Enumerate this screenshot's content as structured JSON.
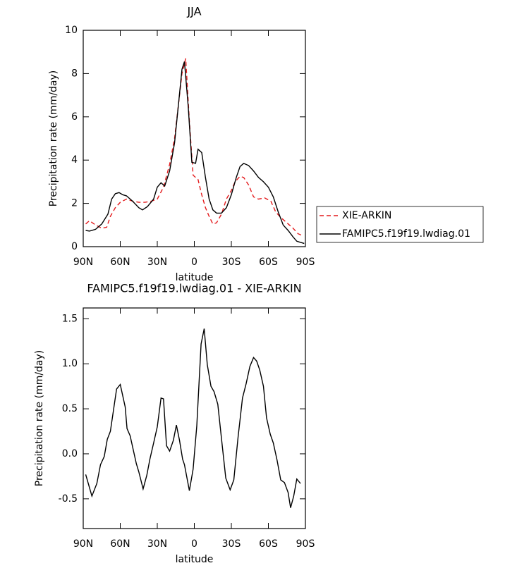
{
  "chart_data": [
    {
      "type": "line",
      "title": "JJA",
      "x_label": "latitude",
      "y_label": "Precipitation rate (mm/day)",
      "xlim": [
        90,
        -90
      ],
      "xticks": [
        {
          "value": 90,
          "label": "90N"
        },
        {
          "value": 60,
          "label": "60N"
        },
        {
          "value": 30,
          "label": "30N"
        },
        0,
        {
          "value": -30,
          "label": "30S"
        },
        {
          "value": -60,
          "label": "60S"
        },
        {
          "value": -90,
          "label": "90S"
        }
      ],
      "ylim": [
        0,
        10
      ],
      "yticks": [
        0,
        2,
        4,
        6,
        8,
        10
      ],
      "legend": "right",
      "series": [
        {
          "name": "XIE-ARKIN",
          "color": "#e41a1c",
          "line_style": "dashed",
          "x": [
            88,
            85,
            80,
            75,
            71,
            68,
            64,
            60,
            55,
            50,
            45,
            40,
            35,
            30,
            25,
            20,
            16,
            13,
            10,
            7,
            4,
            1,
            -3,
            -6,
            -9,
            -12,
            -15,
            -18,
            -22,
            -26,
            -30,
            -33,
            -37,
            -40,
            -44,
            -48,
            -52,
            -57,
            -62,
            -66,
            -70,
            -75,
            -80,
            -84,
            -88
          ],
          "values": [
            1.05,
            1.2,
            1.0,
            0.85,
            0.9,
            1.4,
            1.8,
            2.05,
            2.2,
            2.1,
            2.05,
            2.05,
            2.1,
            2.2,
            2.75,
            3.8,
            5.0,
            6.5,
            8.0,
            8.7,
            5.8,
            3.3,
            3.1,
            2.4,
            1.8,
            1.4,
            1.05,
            1.1,
            1.5,
            2.2,
            2.6,
            3.0,
            3.25,
            3.2,
            2.85,
            2.3,
            2.2,
            2.25,
            2.1,
            1.6,
            1.35,
            1.1,
            0.85,
            0.6,
            0.5
          ]
        },
        {
          "name": "FAMIPC5.f19f19.lwdiag.01",
          "color": "#000000",
          "line_style": "solid",
          "x": [
            88,
            85,
            80,
            75,
            70,
            67,
            64,
            61,
            58,
            55,
            50,
            45,
            42,
            38,
            33,
            30,
            27,
            24,
            20,
            16,
            13,
            10,
            8,
            5,
            2,
            -1,
            -3,
            -6,
            -9,
            -12,
            -15,
            -18,
            -22,
            -26,
            -30,
            -34,
            -37,
            -40,
            -44,
            -48,
            -52,
            -56,
            -60,
            -64,
            -68,
            -72,
            -76,
            -80,
            -83,
            -86,
            -89
          ],
          "values": [
            0.75,
            0.72,
            0.8,
            1.05,
            1.5,
            2.2,
            2.45,
            2.5,
            2.4,
            2.35,
            2.1,
            1.8,
            1.7,
            1.85,
            2.2,
            2.75,
            2.95,
            2.8,
            3.5,
            4.8,
            6.5,
            8.2,
            8.55,
            6.5,
            3.9,
            3.85,
            4.5,
            4.35,
            3.2,
            2.2,
            1.7,
            1.55,
            1.55,
            1.8,
            2.4,
            3.2,
            3.7,
            3.85,
            3.75,
            3.5,
            3.2,
            3.0,
            2.75,
            2.3,
            1.6,
            1.0,
            0.75,
            0.45,
            0.25,
            0.2,
            0.15
          ]
        }
      ]
    },
    {
      "type": "line",
      "title": "FAMIPC5.f19f19.lwdiag.01 - XIE-ARKIN",
      "x_label": "latitude",
      "y_label": "Precipitation rate (mm/day)",
      "xlim": [
        90,
        -90
      ],
      "xticks": [
        {
          "value": 90,
          "label": "90N"
        },
        {
          "value": 60,
          "label": "60N"
        },
        {
          "value": 30,
          "label": "30N"
        },
        0,
        {
          "value": -30,
          "label": "30S"
        },
        {
          "value": -60,
          "label": "60S"
        },
        {
          "value": -90,
          "label": "90S"
        }
      ],
      "ylim": [
        -0.83,
        1.62
      ],
      "yticks": [
        -0.5,
        {
          "value": 0,
          "label": "0.0"
        },
        0.5,
        {
          "value": 1,
          "label": "1.0"
        },
        1.5
      ],
      "color": "#000000",
      "x": [
        88,
        83,
        79,
        76,
        73,
        70.5,
        68,
        63,
        60,
        56,
        54.5,
        52,
        47,
        45,
        41.5,
        38.5,
        36,
        33,
        30,
        27,
        25,
        22.5,
        20,
        17,
        14.5,
        12,
        9.5,
        8,
        4,
        1,
        -2,
        -5.5,
        -8,
        -10.5,
        -13.5,
        -16,
        -19,
        -22,
        -25.5,
        -29,
        -32,
        -35.5,
        -39,
        -42,
        -45,
        -48,
        -50.5,
        -53,
        -56,
        -58.5,
        -61.5,
        -64,
        -67,
        -70,
        -73,
        -76,
        -78,
        -80.5,
        -83,
        -86
      ],
      "values": [
        -0.23,
        -0.47,
        -0.33,
        -0.12,
        -0.03,
        0.16,
        0.25,
        0.72,
        0.77,
        0.52,
        0.28,
        0.2,
        -0.11,
        -0.2,
        -0.39,
        -0.24,
        -0.06,
        0.12,
        0.3,
        0.62,
        0.61,
        0.09,
        0.03,
        0.15,
        0.32,
        0.15,
        -0.06,
        -0.12,
        -0.41,
        -0.17,
        0.31,
        1.22,
        1.39,
        0.99,
        0.75,
        0.69,
        0.55,
        0.17,
        -0.27,
        -0.4,
        -0.29,
        0.19,
        0.62,
        0.78,
        0.97,
        1.07,
        1.03,
        0.93,
        0.75,
        0.4,
        0.22,
        0.12,
        -0.07,
        -0.29,
        -0.32,
        -0.43,
        -0.6,
        -0.47,
        -0.28,
        -0.33
      ]
    }
  ]
}
